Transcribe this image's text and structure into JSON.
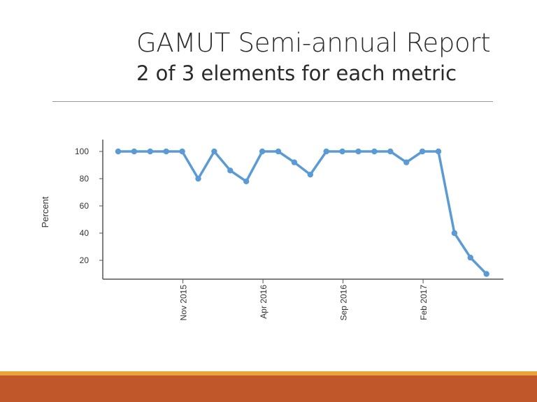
{
  "slide": {
    "title": "GAMUT Semi-annual Report",
    "subtitle": "2 of 3 elements for each metric"
  },
  "colors": {
    "line": "#5b9bd5",
    "footer_accent": "#e8a33a",
    "footer_bar": "#c0572b"
  },
  "chart_data": {
    "type": "line",
    "title": "",
    "xlabel": "",
    "ylabel": "Percent",
    "ylim": [
      10,
      100
    ],
    "yticks": [
      100,
      80,
      60,
      40,
      20
    ],
    "x_tick_labels": [
      {
        "label": "Nov 2015",
        "index": 4
      },
      {
        "label": "Apr 2016",
        "index": 9
      },
      {
        "label": "Sep 2016",
        "index": 14
      },
      {
        "label": "Feb 2017",
        "index": 19
      }
    ],
    "series": [
      {
        "values": [
          100,
          100,
          100,
          100,
          100,
          80,
          100,
          86,
          78,
          100,
          100,
          92,
          83,
          100,
          100,
          100,
          100,
          100,
          92,
          100,
          100,
          40,
          22,
          10
        ]
      }
    ],
    "grid": false,
    "legend": "none"
  }
}
